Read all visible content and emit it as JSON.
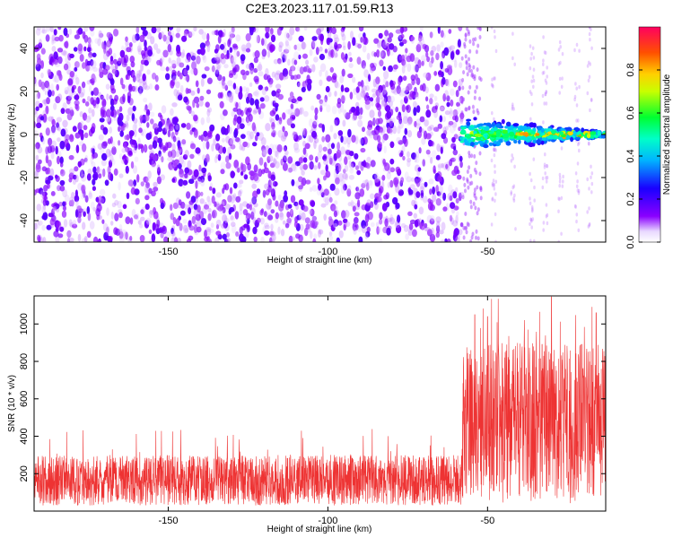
{
  "title": "C2E3.2023.117.01.59.R13",
  "chart_data": [
    {
      "type": "heatmap",
      "xlabel": "Height of straight line (km)",
      "ylabel": "Frequency (Hz)",
      "xlim": [
        -192,
        -13
      ],
      "ylim": [
        -50,
        50
      ],
      "x_ticks": [
        -150,
        -100,
        -50
      ],
      "y_ticks": [
        -40,
        -20,
        0,
        20,
        40
      ],
      "colorbar": {
        "label": "Normalized spectral amplitude",
        "range": [
          0,
          1
        ],
        "ticks": [
          0.0,
          0.2,
          0.4,
          0.6,
          0.8
        ],
        "tick_labels": [
          "0.0",
          "0.2",
          "0.4",
          "0.6",
          "0.8"
        ],
        "colormap": "rainbow (white-violet-blue-cyan-green-yellow-red-magenta)"
      },
      "noise_region": {
        "x_range": [
          -192,
          -58
        ],
        "y_range": [
          -50,
          50
        ],
        "typical_amplitude": 0.05
      },
      "signal_region": {
        "x_range": [
          -58,
          -13
        ],
        "frequency_hz": 0,
        "amplitude_range": [
          0.3,
          0.85
        ],
        "peak_x": -30,
        "peak_amplitude": 0.85
      }
    },
    {
      "type": "line",
      "xlabel": "Height of straight line (km)",
      "ylabel": "SNR (10 * v/v)",
      "xlim": [
        -192,
        -13
      ],
      "ylim": [
        0,
        1150
      ],
      "x_ticks": [
        -150,
        -100,
        -50
      ],
      "y_ticks": [
        200,
        400,
        600,
        800,
        1000
      ],
      "series": [
        {
          "color": "#ee3333",
          "segments": [
            {
              "x_range": [
                -192,
                -58
              ],
              "baseline": 150,
              "typical_max": 300,
              "peak_max": 440
            },
            {
              "x_range": [
                -58,
                -13
              ],
              "baseline": 400,
              "typical_max": 900,
              "peak_max": 1145
            }
          ],
          "notable_peaks": [
            {
              "x": -54,
              "y": 1050
            },
            {
              "x": -50,
              "y": 1040
            },
            {
              "x": -30,
              "y": 1145
            },
            {
              "x": -16,
              "y": 1060
            }
          ]
        }
      ]
    }
  ]
}
